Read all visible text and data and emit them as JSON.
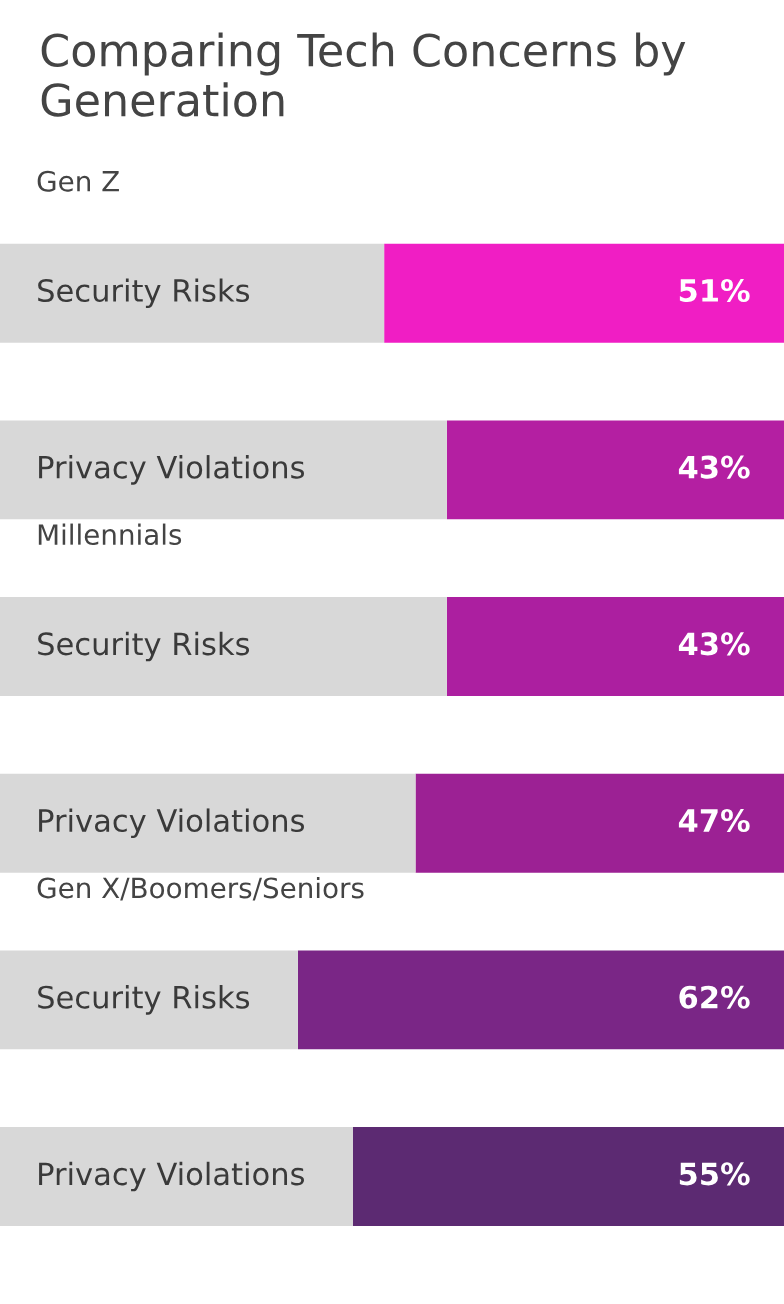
{
  "chart_data": {
    "type": "bar",
    "orientation": "horizontal",
    "stacked": true,
    "title": "Comparing Tech Concerns by Generation",
    "categories": [
      "Security Risks",
      "Privacy Violations",
      "Security Risks",
      "Privacy Violations",
      "Security Risks",
      "Privacy Violations"
    ],
    "series": [
      {
        "colors": [
          "#f01ec4",
          "#b41fa2",
          "#ac1fa0",
          "#9c2194",
          "#7a2686",
          "#5c2a72"
        ],
        "values": [
          51,
          43,
          43,
          47,
          62,
          55
        ],
        "value_labels": [
          "51%",
          "43%",
          "43%",
          "47%",
          "62%",
          "55%"
        ]
      },
      {
        "color": "#d8d8d8",
        "values": [
          49,
          57,
          57,
          53,
          38,
          45
        ]
      }
    ],
    "annotations": [
      "Gen Z",
      "Millennials",
      "Gen X/Boomers/Seniors"
    ]
  }
}
